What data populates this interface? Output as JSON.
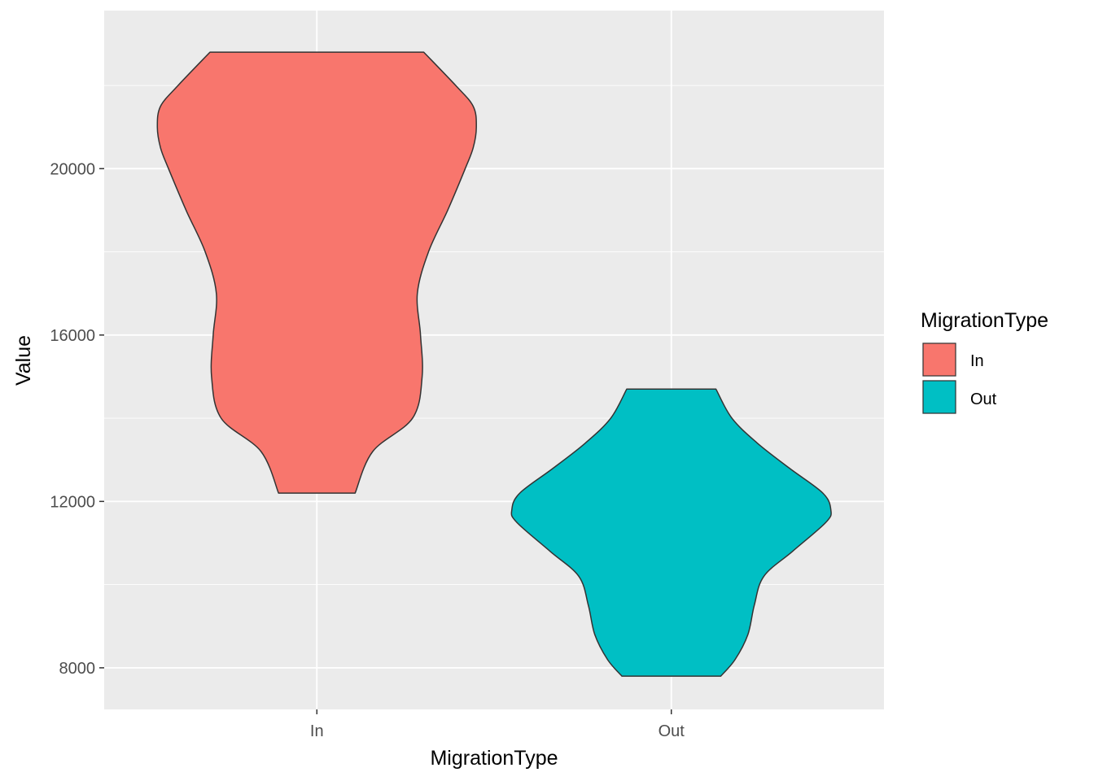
{
  "chart_data": {
    "type": "violin",
    "xlabel": "MigrationType",
    "ylabel": "Value",
    "categories": [
      "In",
      "Out"
    ],
    "ylim": [
      7000,
      23800
    ],
    "yticks": [
      8000,
      12000,
      16000,
      20000
    ],
    "ytick_labels": [
      "8000",
      "12000",
      "16000",
      "20000"
    ],
    "grid": true,
    "legend": {
      "title": "MigrationType",
      "position": "right",
      "entries": [
        {
          "label": "In",
          "color": "#F8766D"
        },
        {
          "label": "Out",
          "color": "#00BFC4"
        }
      ]
    },
    "series": [
      {
        "category": "In",
        "color": "#F8766D",
        "min": 12200,
        "max": 22800,
        "density_profile": [
          {
            "value": 12200,
            "relative_width": 0.24
          },
          {
            "value": 13200,
            "relative_width": 0.35
          },
          {
            "value": 14000,
            "relative_width": 0.6
          },
          {
            "value": 15000,
            "relative_width": 0.66
          },
          {
            "value": 16000,
            "relative_width": 0.65
          },
          {
            "value": 17000,
            "relative_width": 0.63
          },
          {
            "value": 18000,
            "relative_width": 0.7
          },
          {
            "value": 19000,
            "relative_width": 0.82
          },
          {
            "value": 20000,
            "relative_width": 0.93
          },
          {
            "value": 20500,
            "relative_width": 0.98
          },
          {
            "value": 21000,
            "relative_width": 1.0
          },
          {
            "value": 21500,
            "relative_width": 0.98
          },
          {
            "value": 22000,
            "relative_width": 0.87
          },
          {
            "value": 22800,
            "relative_width": 0.67
          }
        ]
      },
      {
        "category": "Out",
        "color": "#00BFC4",
        "min": 7800,
        "max": 14700,
        "density_profile": [
          {
            "value": 7800,
            "relative_width": 0.31
          },
          {
            "value": 8200,
            "relative_width": 0.4
          },
          {
            "value": 8800,
            "relative_width": 0.48
          },
          {
            "value": 9500,
            "relative_width": 0.52
          },
          {
            "value": 10200,
            "relative_width": 0.58
          },
          {
            "value": 10800,
            "relative_width": 0.76
          },
          {
            "value": 11500,
            "relative_width": 0.97
          },
          {
            "value": 11800,
            "relative_width": 1.0
          },
          {
            "value": 12200,
            "relative_width": 0.95
          },
          {
            "value": 12800,
            "relative_width": 0.74
          },
          {
            "value": 13400,
            "relative_width": 0.54
          },
          {
            "value": 14000,
            "relative_width": 0.38
          },
          {
            "value": 14700,
            "relative_width": 0.28
          }
        ]
      }
    ]
  }
}
